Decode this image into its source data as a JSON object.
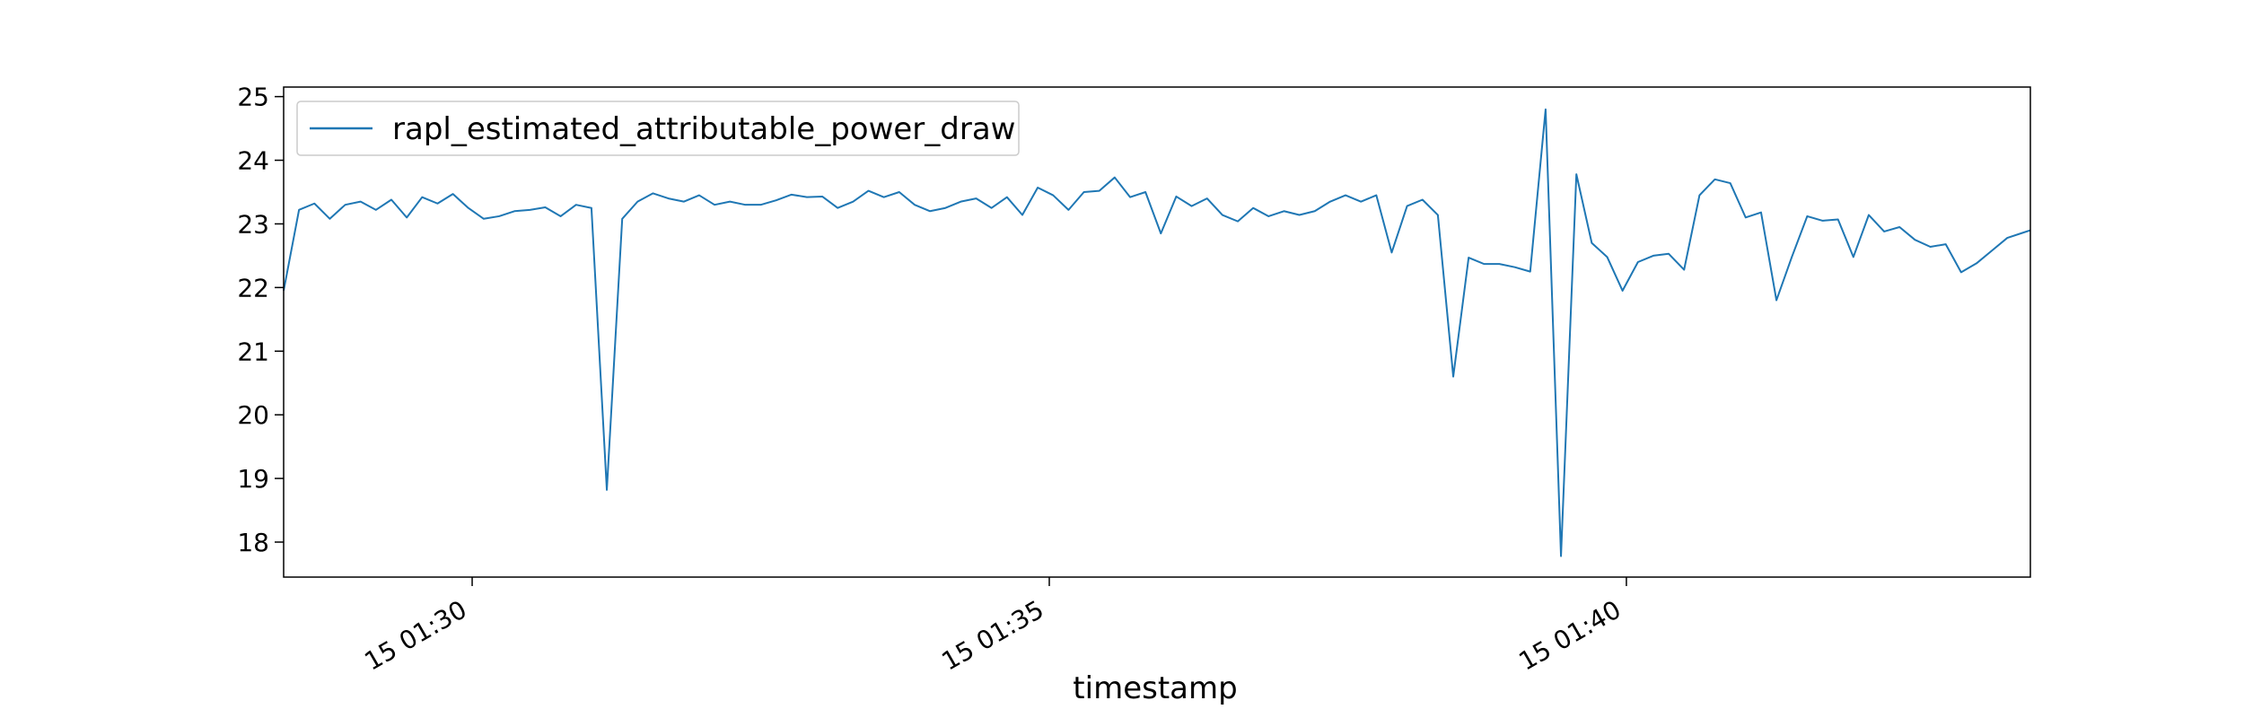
{
  "chart_data": {
    "type": "line",
    "title": "",
    "xlabel": "timestamp",
    "ylabel": "",
    "grid": false,
    "legend_location": "upper left",
    "colors": {
      "series": "#1f77b4",
      "axes": "#000000",
      "legend_border": "#cccccc",
      "background": "#ffffff"
    },
    "xlim": [
      "15 01:28:22",
      "15 01:43:30"
    ],
    "ylim": [
      17.45,
      25.15
    ],
    "x_ticks": [
      {
        "value": "15 01:30:00",
        "label": "15 01:30"
      },
      {
        "value": "15 01:35:00",
        "label": "15 01:35"
      },
      {
        "value": "15 01:40:00",
        "label": "15 01:40"
      }
    ],
    "y_ticks": [
      18,
      19,
      20,
      21,
      22,
      23,
      24,
      25
    ],
    "series": [
      {
        "name": "rapl_estimated_attributable_power_draw",
        "x": [
          "15 01:28:22",
          "15 01:28:30",
          "15 01:28:38",
          "15 01:28:46",
          "15 01:28:54",
          "15 01:29:02",
          "15 01:29:10",
          "15 01:29:18",
          "15 01:29:26",
          "15 01:29:34",
          "15 01:29:42",
          "15 01:29:50",
          "15 01:29:58",
          "15 01:30:06",
          "15 01:30:14",
          "15 01:30:22",
          "15 01:30:30",
          "15 01:30:38",
          "15 01:30:46",
          "15 01:30:54",
          "15 01:31:02",
          "15 01:31:10",
          "15 01:31:18",
          "15 01:31:26",
          "15 01:31:34",
          "15 01:31:42",
          "15 01:31:50",
          "15 01:31:58",
          "15 01:32:06",
          "15 01:32:14",
          "15 01:32:22",
          "15 01:32:30",
          "15 01:32:38",
          "15 01:32:46",
          "15 01:32:54",
          "15 01:33:02",
          "15 01:33:10",
          "15 01:33:18",
          "15 01:33:26",
          "15 01:33:34",
          "15 01:33:42",
          "15 01:33:50",
          "15 01:33:58",
          "15 01:34:06",
          "15 01:34:14",
          "15 01:34:22",
          "15 01:34:30",
          "15 01:34:38",
          "15 01:34:46",
          "15 01:34:54",
          "15 01:35:02",
          "15 01:35:10",
          "15 01:35:18",
          "15 01:35:26",
          "15 01:35:34",
          "15 01:35:42",
          "15 01:35:50",
          "15 01:35:58",
          "15 01:36:06",
          "15 01:36:14",
          "15 01:36:22",
          "15 01:36:30",
          "15 01:36:38",
          "15 01:36:46",
          "15 01:36:54",
          "15 01:37:02",
          "15 01:37:10",
          "15 01:37:18",
          "15 01:37:26",
          "15 01:37:34",
          "15 01:37:42",
          "15 01:37:50",
          "15 01:37:58",
          "15 01:38:06",
          "15 01:38:14",
          "15 01:38:22",
          "15 01:38:30",
          "15 01:38:38",
          "15 01:38:46",
          "15 01:38:54",
          "15 01:39:02",
          "15 01:39:10",
          "15 01:39:18",
          "15 01:39:26",
          "15 01:39:34",
          "15 01:39:42",
          "15 01:39:50",
          "15 01:39:58",
          "15 01:40:06",
          "15 01:40:14",
          "15 01:40:22",
          "15 01:40:30",
          "15 01:40:38",
          "15 01:40:46",
          "15 01:40:54",
          "15 01:41:02",
          "15 01:41:10",
          "15 01:41:18",
          "15 01:41:26",
          "15 01:41:34",
          "15 01:41:42",
          "15 01:41:50",
          "15 01:41:58",
          "15 01:42:06",
          "15 01:42:14",
          "15 01:42:22",
          "15 01:42:30",
          "15 01:42:38",
          "15 01:42:46",
          "15 01:42:54",
          "15 01:43:02",
          "15 01:43:10",
          "15 01:43:18",
          "15 01:43:26",
          "15 01:43:30"
        ],
        "y": [
          21.95,
          23.22,
          23.32,
          23.08,
          23.3,
          23.35,
          23.22,
          23.38,
          23.1,
          23.42,
          23.32,
          23.47,
          23.25,
          23.08,
          23.12,
          23.2,
          23.22,
          23.26,
          23.12,
          23.3,
          23.25,
          18.82,
          23.08,
          23.35,
          23.48,
          23.4,
          23.35,
          23.45,
          23.3,
          23.35,
          23.3,
          23.3,
          23.37,
          23.46,
          23.42,
          23.43,
          23.25,
          23.35,
          23.52,
          23.42,
          23.5,
          23.3,
          23.2,
          23.25,
          23.35,
          23.4,
          23.25,
          23.42,
          23.14,
          23.57,
          23.45,
          23.22,
          23.5,
          23.52,
          23.73,
          23.42,
          23.5,
          22.85,
          23.43,
          23.28,
          23.4,
          23.14,
          23.04,
          23.25,
          23.12,
          23.2,
          23.14,
          23.2,
          23.35,
          23.45,
          23.35,
          23.45,
          22.55,
          23.28,
          23.38,
          23.14,
          20.6,
          22.47,
          22.37,
          22.37,
          22.32,
          22.25,
          24.8,
          17.78,
          23.78,
          22.7,
          22.48,
          21.95,
          22.4,
          22.5,
          22.53,
          22.28,
          23.45,
          23.7,
          23.64,
          23.1,
          23.18,
          21.8,
          22.48,
          23.12,
          23.05,
          23.07,
          22.48,
          23.14,
          22.88,
          22.95,
          22.75,
          22.64,
          22.68,
          22.24,
          22.38,
          22.58,
          22.78,
          22.86,
          22.9
        ]
      }
    ]
  }
}
